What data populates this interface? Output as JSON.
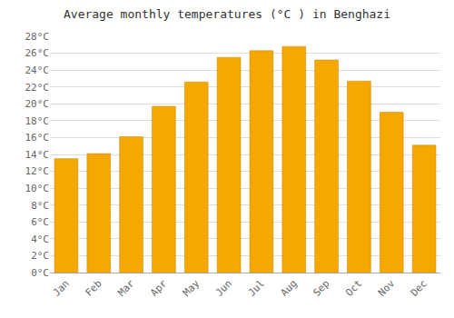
{
  "chart_data": {
    "type": "bar",
    "title": "Average monthly temperatures (°C ) in Benghazi",
    "categories": [
      "Jan",
      "Feb",
      "Mar",
      "Apr",
      "May",
      "Jun",
      "Jul",
      "Aug",
      "Sep",
      "Oct",
      "Nov",
      "Dec"
    ],
    "values": [
      13.5,
      14.1,
      16.1,
      19.7,
      22.6,
      25.5,
      26.3,
      26.8,
      25.2,
      22.7,
      19.0,
      15.1
    ],
    "color": "#F5A800",
    "ylim": [
      0,
      28
    ],
    "yticks": [
      {
        "value": 0,
        "label": "0°C"
      },
      {
        "value": 2,
        "label": "2°C"
      },
      {
        "value": 4,
        "label": "4°C"
      },
      {
        "value": 6,
        "label": "6°C"
      },
      {
        "value": 8,
        "label": "8°C"
      },
      {
        "value": 10,
        "label": "10°C"
      },
      {
        "value": 12,
        "label": "12°C"
      },
      {
        "value": 14,
        "label": "14°C"
      },
      {
        "value": 16,
        "label": "16°C"
      },
      {
        "value": 18,
        "label": "18°C"
      },
      {
        "value": 20,
        "label": "20°C"
      },
      {
        "value": 22,
        "label": "22°C"
      },
      {
        "value": 24,
        "label": "24°C"
      },
      {
        "value": 26,
        "label": "26°C"
      },
      {
        "value": 28,
        "label": "28°C"
      }
    ],
    "grid": true
  }
}
